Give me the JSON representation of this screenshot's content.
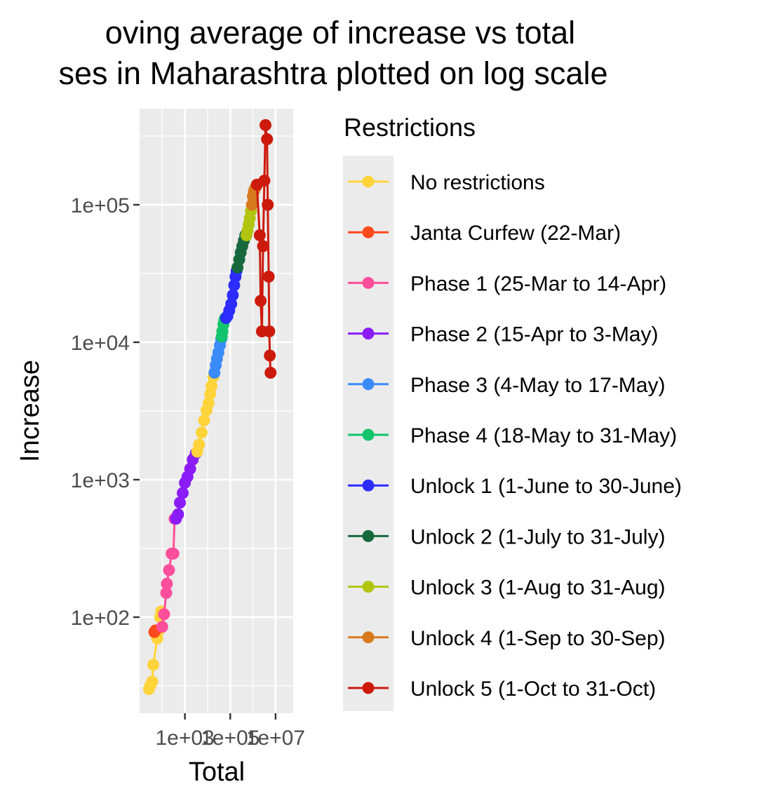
{
  "chart_data": {
    "type": "line",
    "title_lines": [
      "oving average of increase vs total",
      "ses in Maharashtra plotted on log scale"
    ],
    "xlabel": "Total",
    "ylabel": "Increase",
    "x_scale": "log10",
    "y_scale": "log10",
    "xlim": [
      10,
      60000000
    ],
    "ylim": [
      20,
      500000
    ],
    "x_ticks": [
      {
        "value": 1000,
        "label": "1e+03"
      },
      {
        "value": 100000,
        "label": "1e+05"
      },
      {
        "value": 10000000,
        "label": "1e+07"
      }
    ],
    "y_ticks": [
      {
        "value": 100,
        "label": "1e+02"
      },
      {
        "value": 1000,
        "label": "1e+03"
      },
      {
        "value": 10000,
        "label": "1e+04"
      },
      {
        "value": 100000,
        "label": "1e+05"
      }
    ],
    "grid": true,
    "legend": {
      "title": "Restrictions",
      "position": "right"
    },
    "series": [
      {
        "name": "No restrictions",
        "color": "#FFD43B",
        "points": [
          [
            26,
            30
          ],
          [
            30,
            32
          ],
          [
            36,
            34
          ],
          [
            40,
            45
          ],
          [
            60,
            70
          ],
          [
            70,
            80
          ],
          [
            80,
            100
          ],
          [
            90,
            110
          ]
        ]
      },
      {
        "name": "Janta Curfew (22-Mar)",
        "color": "#FF4A1C",
        "points": [
          [
            45,
            78
          ],
          [
            50,
            80
          ]
        ]
      },
      {
        "name": "Phase 1 (25-Mar to 14-Apr)",
        "color": "#FF4E9B",
        "points": [
          [
            100,
            85
          ],
          [
            120,
            105
          ],
          [
            150,
            150
          ],
          [
            160,
            175
          ],
          [
            200,
            220
          ],
          [
            260,
            290
          ],
          [
            310,
            290
          ],
          [
            350,
            520
          ]
        ]
      },
      {
        "name": "Phase 2 (15-Apr to 3-May)",
        "color": "#8B1CF7",
        "points": [
          [
            400,
            520
          ],
          [
            500,
            560
          ],
          [
            600,
            680
          ],
          [
            800,
            800
          ],
          [
            1000,
            950
          ],
          [
            1300,
            1050
          ],
          [
            1700,
            1200
          ],
          [
            2200,
            1400
          ],
          [
            3000,
            1550
          ]
        ]
      },
      {
        "name": "No restrictions",
        "color": "#FFD43B",
        "points": [
          [
            3500,
            1600
          ],
          [
            4200,
            1800
          ],
          [
            5500,
            2200
          ],
          [
            7000,
            2700
          ],
          [
            9000,
            3200
          ],
          [
            11000,
            3600
          ],
          [
            13000,
            4200
          ],
          [
            15000,
            4800
          ],
          [
            18000,
            5600
          ]
        ]
      },
      {
        "name": "Phase 3 (4-May to 17-May)",
        "color": "#3B8BF7",
        "points": [
          [
            20000,
            6000
          ],
          [
            23000,
            6800
          ],
          [
            26000,
            7600
          ],
          [
            30000,
            8400
          ],
          [
            35000,
            9500
          ],
          [
            40000,
            10500
          ]
        ]
      },
      {
        "name": "Phase 4 (18-May to 31-May)",
        "color": "#12C46B",
        "points": [
          [
            42000,
            11000
          ],
          [
            45000,
            12000
          ],
          [
            50000,
            13500
          ],
          [
            55000,
            14500
          ],
          [
            60000,
            15000
          ]
        ]
      },
      {
        "name": "Unlock 1 (1-June to 30-June)",
        "color": "#2C2CFF",
        "points": [
          [
            65000,
            15000
          ],
          [
            75000,
            15500
          ],
          [
            90000,
            17000
          ],
          [
            110000,
            19000
          ],
          [
            130000,
            22000
          ],
          [
            150000,
            26000
          ],
          [
            170000,
            30000
          ],
          [
            190000,
            33000
          ]
        ]
      },
      {
        "name": "Unlock 2 (1-July to 31-July)",
        "color": "#17693D",
        "points": [
          [
            210000,
            35000
          ],
          [
            250000,
            40000
          ],
          [
            290000,
            45000
          ],
          [
            340000,
            50000
          ],
          [
            400000,
            55000
          ],
          [
            460000,
            60000
          ]
        ]
      },
      {
        "name": "Unlock 3 (1-Aug to 31-Aug)",
        "color": "#B1C40F",
        "points": [
          [
            520000,
            60000
          ],
          [
            580000,
            65000
          ],
          [
            650000,
            72000
          ],
          [
            730000,
            80000
          ],
          [
            820000,
            90000
          ]
        ]
      },
      {
        "name": "Unlock 4 (1-Sep to 30-Sep)",
        "color": "#D77A1E",
        "points": [
          [
            900000,
            100000
          ],
          [
            1000000,
            115000
          ],
          [
            1100000,
            125000
          ],
          [
            1200000,
            130000
          ],
          [
            1350000,
            135000
          ]
        ]
      },
      {
        "name": "Unlock 5 (1-Oct to 31-Oct)",
        "color": "#CC1A0C",
        "points": [
          [
            1500000,
            140000
          ],
          [
            2000000,
            60000
          ],
          [
            2200000,
            20000
          ],
          [
            2500000,
            12000
          ],
          [
            2800000,
            50000
          ],
          [
            3200000,
            150000
          ],
          [
            3600000,
            380000
          ],
          [
            4200000,
            300000
          ],
          [
            4500000,
            100000
          ],
          [
            5000000,
            30000
          ],
          [
            5300000,
            12000
          ],
          [
            5600000,
            8000
          ],
          [
            6000000,
            6000
          ]
        ]
      }
    ],
    "legend_entries": [
      {
        "name": "No restrictions",
        "color": "#FFD43B"
      },
      {
        "name": "Janta Curfew (22-Mar)",
        "color": "#FF4A1C"
      },
      {
        "name": "Phase 1 (25-Mar to 14-Apr)",
        "color": "#FF4E9B"
      },
      {
        "name": "Phase 2 (15-Apr to 3-May)",
        "color": "#8B1CF7"
      },
      {
        "name": "Phase 3 (4-May to 17-May)",
        "color": "#3B8BF7"
      },
      {
        "name": "Phase 4 (18-May to 31-May)",
        "color": "#12C46B"
      },
      {
        "name": "Unlock 1 (1-June to 30-June)",
        "color": "#2C2CFF"
      },
      {
        "name": "Unlock 2 (1-July to 31-July)",
        "color": "#17693D"
      },
      {
        "name": "Unlock 3 (1-Aug to 31-Aug)",
        "color": "#B1C40F"
      },
      {
        "name": "Unlock 4 (1-Sep to 30-Sep)",
        "color": "#D77A1E"
      },
      {
        "name": "Unlock 5 (1-Oct to 31-Oct)",
        "color": "#CC1A0C"
      }
    ]
  }
}
